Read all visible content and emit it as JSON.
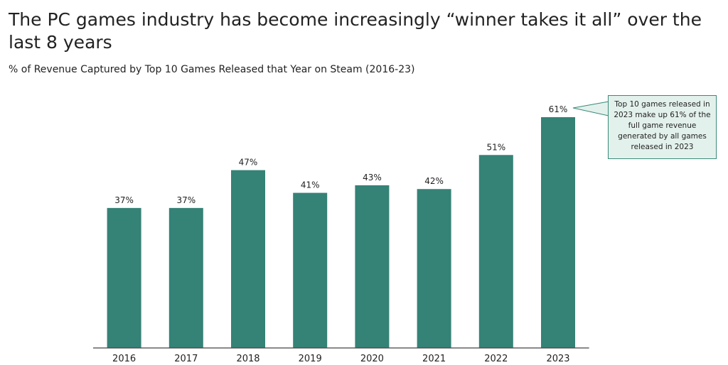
{
  "header": {
    "title": "The PC games industry has become increasingly “winner takes it all” over the last 8 years",
    "subtitle": "% of Revenue Captured by Top 10 Games Released that Year on Steam (2016-23)"
  },
  "annotation": {
    "text": "Top 10 games released in 2023 make up 61% of the full game revenue generated by all games released in 2023"
  },
  "colors": {
    "bar": "#358276",
    "callout_fill": "#e3f1ec",
    "callout_border": "#3a8a7a"
  },
  "chart_data": {
    "type": "bar",
    "title": "% of Revenue Captured by Top 10 Games Released that Year on Steam (2016-23)",
    "categories": [
      "2016",
      "2017",
      "2018",
      "2019",
      "2020",
      "2021",
      "2022",
      "2023"
    ],
    "values": [
      37,
      37,
      47,
      41,
      43,
      42,
      51,
      61
    ],
    "data_labels": [
      "37%",
      "37%",
      "47%",
      "41%",
      "43%",
      "42%",
      "51%",
      "61%"
    ],
    "xlabel": "",
    "ylabel": "",
    "ylim": [
      0,
      65
    ],
    "grid": false,
    "legend": "none"
  }
}
